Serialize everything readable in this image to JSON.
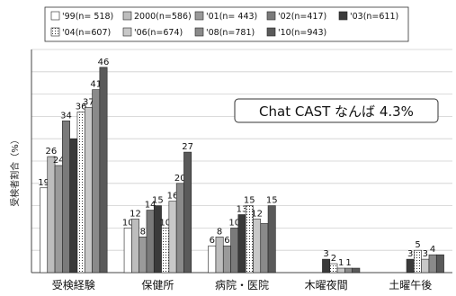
{
  "chart_data": {
    "type": "bar",
    "ylabel": "受検者割合（%）",
    "ylim": [
      0,
      50
    ],
    "grid": true,
    "legend_position": "top",
    "categories": [
      "受検経験",
      "保健所",
      "病院・医院",
      "木曜夜間",
      "土曜午後"
    ],
    "series": [
      {
        "name": "'99(n= 518)",
        "values": [
          19,
          10,
          6,
          0,
          0
        ],
        "labels": [
          "19",
          "10",
          "6",
          "",
          ""
        ],
        "color": "#ffffff",
        "pattern": "solid"
      },
      {
        "name": "2000(n=586)",
        "values": [
          26,
          12,
          8,
          0,
          0
        ],
        "labels": [
          "26",
          "12",
          "8",
          "",
          ""
        ],
        "color": "#bdbdbd",
        "pattern": "solid"
      },
      {
        "name": "'01(n= 443)",
        "values": [
          24,
          8,
          6,
          0,
          0
        ],
        "labels": [
          "24",
          "8",
          "6",
          "",
          ""
        ],
        "color": "#9a9a9a",
        "pattern": "solid"
      },
      {
        "name": "'02(n=417)",
        "values": [
          34,
          14,
          10,
          0,
          0
        ],
        "labels": [
          "34",
          "14",
          "10",
          "",
          ""
        ],
        "color": "#7a7a7a",
        "pattern": "solid"
      },
      {
        "name": "'03(n=611)",
        "values": [
          30,
          15,
          13,
          3,
          3
        ],
        "labels": [
          "",
          "15",
          "13",
          "3",
          "3"
        ],
        "color": "#3a3a3a",
        "pattern": "solid"
      },
      {
        "name": "'04(n=607)",
        "values": [
          36,
          10,
          15,
          2,
          5
        ],
        "labels": [
          "36",
          "10",
          "15",
          "2",
          "5"
        ],
        "color": "#ffffff",
        "pattern": "dotted"
      },
      {
        "name": "'06(n=674)",
        "values": [
          37,
          16,
          12,
          1,
          3
        ],
        "labels": [
          "37",
          "16",
          "12",
          "1",
          "3"
        ],
        "color": "#c8c8c8",
        "pattern": "solid"
      },
      {
        "name": "'08(n=781)",
        "values": [
          41,
          20,
          11,
          1,
          4
        ],
        "labels": [
          "41",
          "20",
          "",
          "1",
          "4"
        ],
        "color": "#8a8a8a",
        "pattern": "solid"
      },
      {
        "name": "'10(n=943)",
        "values": [
          46,
          27,
          15,
          1,
          4
        ],
        "labels": [
          "46",
          "27",
          "15",
          "",
          ""
        ],
        "color": "#5a5a5a",
        "pattern": "solid"
      }
    ],
    "annotation": "Chat CAST なんば 4.3%"
  }
}
